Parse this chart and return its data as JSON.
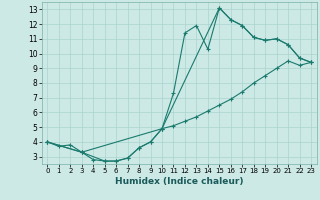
{
  "title": "",
  "xlabel": "Humidex (Indice chaleur)",
  "bg_color": "#cce9e5",
  "grid_color": "#aad4cf",
  "line_color": "#1a7a6e",
  "xlim": [
    -0.5,
    23.5
  ],
  "ylim": [
    2.5,
    13.5
  ],
  "xticks": [
    0,
    1,
    2,
    3,
    4,
    5,
    6,
    7,
    8,
    9,
    10,
    11,
    12,
    13,
    14,
    15,
    16,
    17,
    18,
    19,
    20,
    21,
    22,
    23
  ],
  "yticks": [
    3,
    4,
    5,
    6,
    7,
    8,
    9,
    10,
    11,
    12,
    13
  ],
  "line1_x": [
    0,
    1,
    2,
    3,
    4,
    5,
    6,
    7,
    8,
    9,
    10,
    11,
    12,
    13,
    14,
    15,
    16,
    17,
    18,
    19,
    20,
    21,
    22,
    23
  ],
  "line1_y": [
    4.0,
    3.7,
    3.8,
    3.3,
    2.8,
    2.7,
    2.7,
    2.9,
    3.6,
    4.0,
    4.9,
    7.3,
    11.4,
    11.9,
    10.3,
    13.1,
    12.3,
    11.9,
    11.1,
    10.9,
    11.0,
    10.6,
    9.7,
    9.4
  ],
  "line2_x": [
    0,
    3,
    5,
    6,
    7,
    8,
    9,
    10,
    11,
    12,
    13,
    14,
    15,
    16,
    17,
    18,
    19,
    20,
    21,
    22,
    23
  ],
  "line2_y": [
    4.0,
    3.3,
    2.7,
    2.7,
    2.9,
    3.6,
    4.0,
    4.9,
    5.1,
    5.4,
    5.7,
    6.1,
    6.5,
    6.9,
    7.4,
    8.0,
    8.5,
    9.0,
    9.5,
    9.2,
    9.4
  ],
  "line3_x": [
    0,
    3,
    10,
    15,
    16,
    17,
    18,
    19,
    20,
    21,
    22,
    23
  ],
  "line3_y": [
    4.0,
    3.3,
    4.9,
    13.1,
    12.3,
    11.9,
    11.1,
    10.9,
    11.0,
    10.6,
    9.7,
    9.4
  ]
}
